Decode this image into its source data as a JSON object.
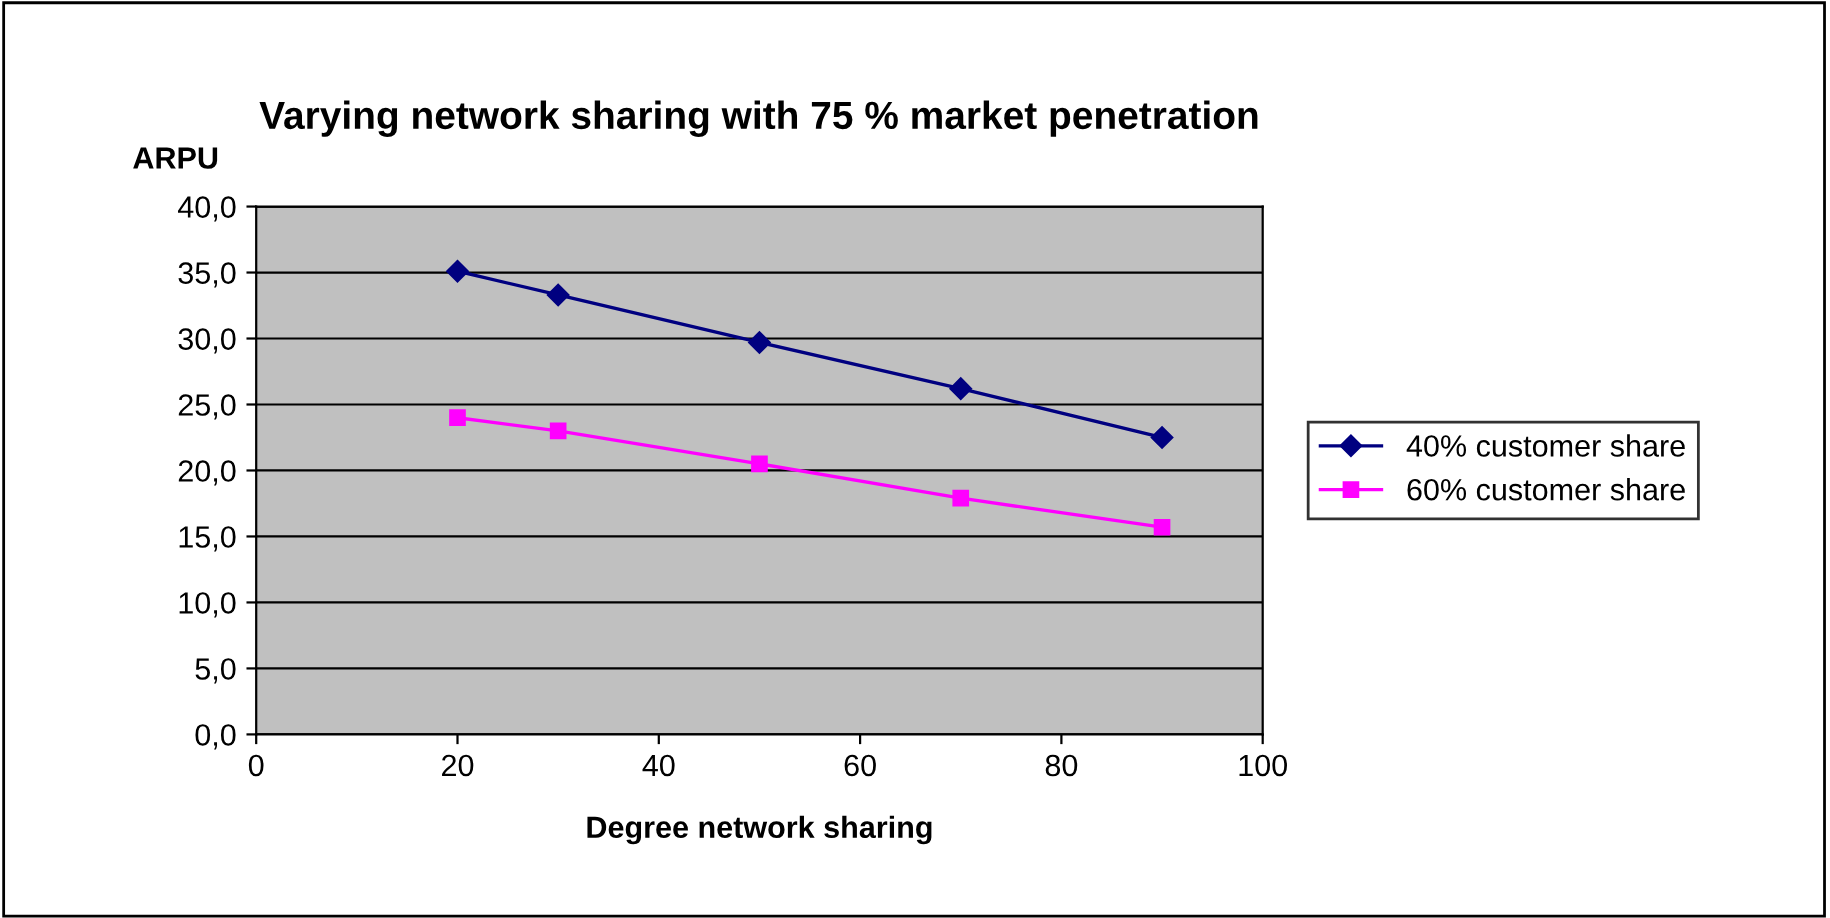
{
  "chart_data": {
    "type": "line",
    "title": "Varying network sharing with 75 % market penetration",
    "xlabel": "Degree network sharing",
    "ylabel": "ARPU",
    "x": [
      20,
      30,
      50,
      70,
      90
    ],
    "series": [
      {
        "name": "40% customer share",
        "color": "#000080",
        "marker": "diamond",
        "values": [
          35.1,
          33.3,
          29.7,
          26.2,
          22.5
        ]
      },
      {
        "name": "60% customer share",
        "color": "#ff00ff",
        "marker": "square",
        "values": [
          24.0,
          23.0,
          20.5,
          17.9,
          15.7
        ]
      }
    ],
    "xlim": [
      0,
      100
    ],
    "xticks": [
      0,
      20,
      40,
      60,
      80,
      100
    ],
    "ylim": [
      0,
      40
    ],
    "yticks": [
      {
        "value": 0,
        "label": "0,0"
      },
      {
        "value": 5,
        "label": "5,0"
      },
      {
        "value": 10,
        "label": "10,0"
      },
      {
        "value": 15,
        "label": "15,0"
      },
      {
        "value": 20,
        "label": "20,0"
      },
      {
        "value": 25,
        "label": "25,0"
      },
      {
        "value": 30,
        "label": "30,0"
      },
      {
        "value": 35,
        "label": "35,0"
      },
      {
        "value": 40,
        "label": "40,0"
      }
    ],
    "grid": "y",
    "legend": "right",
    "line_style": "solid"
  }
}
